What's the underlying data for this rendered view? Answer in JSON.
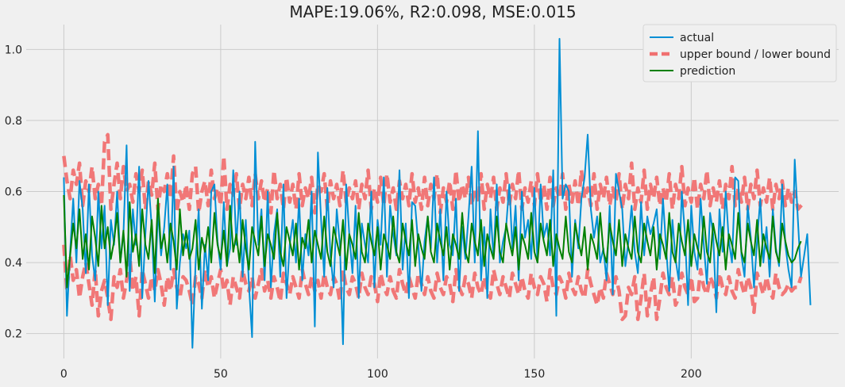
{
  "chart_data": {
    "type": "line",
    "title": "MAPE:19.06%, R2:0.098, MSE:0.015",
    "xlabel": "",
    "ylabel": "",
    "xlim": [
      -12,
      247
    ],
    "ylim": [
      0.13,
      1.07
    ],
    "xticks": [
      0,
      50,
      100,
      150,
      200
    ],
    "yticks": [
      0.2,
      0.4,
      0.6,
      0.8,
      1.0
    ],
    "xtick_labels": [
      "0",
      "50",
      "100",
      "150",
      "200"
    ],
    "ytick_labels": [
      "0.2",
      "0.4",
      "0.6",
      "0.8",
      "1.0"
    ],
    "grid": true,
    "legend_position": "top-right",
    "legend": [
      "actual",
      "upper bound / lower bound",
      "prediction"
    ],
    "colors": {
      "actual": "#008fd5",
      "bounds": "#f07070",
      "prediction": "#008000",
      "grid": "#cbcbcb",
      "background": "#f0f0f0"
    },
    "series": [
      {
        "name": "actual",
        "x_start": 0,
        "values": [
          0.64,
          0.25,
          0.43,
          0.58,
          0.4,
          0.63,
          0.55,
          0.37,
          0.62,
          0.42,
          0.35,
          0.6,
          0.44,
          0.56,
          0.28,
          0.52,
          0.45,
          0.6,
          0.4,
          0.48,
          0.73,
          0.32,
          0.55,
          0.45,
          0.67,
          0.3,
          0.48,
          0.63,
          0.5,
          0.29,
          0.55,
          0.42,
          0.5,
          0.62,
          0.38,
          0.67,
          0.27,
          0.4,
          0.48,
          0.44,
          0.49,
          0.16,
          0.4,
          0.55,
          0.27,
          0.45,
          0.35,
          0.6,
          0.62,
          0.46,
          0.38,
          0.57,
          0.39,
          0.44,
          0.66,
          0.45,
          0.6,
          0.36,
          0.52,
          0.34,
          0.19,
          0.74,
          0.45,
          0.55,
          0.35,
          0.6,
          0.33,
          0.48,
          0.55,
          0.36,
          0.62,
          0.3,
          0.45,
          0.52,
          0.4,
          0.58,
          0.35,
          0.48,
          0.42,
          0.6,
          0.22,
          0.71,
          0.52,
          0.36,
          0.61,
          0.42,
          0.33,
          0.55,
          0.45,
          0.17,
          0.62,
          0.48,
          0.37,
          0.56,
          0.3,
          0.51,
          0.45,
          0.4,
          0.6,
          0.33,
          0.52,
          0.45,
          0.64,
          0.36,
          0.56,
          0.48,
          0.42,
          0.66,
          0.38,
          0.51,
          0.3,
          0.57,
          0.56,
          0.45,
          0.32,
          0.46,
          0.53,
          0.44,
          0.64,
          0.4,
          0.55,
          0.35,
          0.6,
          0.45,
          0.42,
          0.58,
          0.32,
          0.5,
          0.41,
          0.53,
          0.67,
          0.4,
          0.77,
          0.35,
          0.5,
          0.3,
          0.55,
          0.41,
          0.62,
          0.4,
          0.46,
          0.5,
          0.62,
          0.44,
          0.56,
          0.35,
          0.6,
          0.47,
          0.52,
          0.41,
          0.61,
          0.4,
          0.62,
          0.47,
          0.51,
          0.42,
          0.66,
          0.25,
          1.03,
          0.58,
          0.62,
          0.6,
          0.36,
          0.52,
          0.44,
          0.58,
          0.64,
          0.76,
          0.55,
          0.47,
          0.53,
          0.4,
          0.44,
          0.35,
          0.56,
          0.31,
          0.65,
          0.6,
          0.55,
          0.39,
          0.46,
          0.56,
          0.43,
          0.37,
          0.57,
          0.42,
          0.53,
          0.48,
          0.51,
          0.55,
          0.41,
          0.58,
          0.44,
          0.32,
          0.52,
          0.41,
          0.35,
          0.6,
          0.48,
          0.28,
          0.56,
          0.43,
          0.38,
          0.58,
          0.45,
          0.34,
          0.54,
          0.48,
          0.26,
          0.55,
          0.43,
          0.6,
          0.46,
          0.4,
          0.64,
          0.63,
          0.42,
          0.36,
          0.56,
          0.47,
          0.33,
          0.46,
          0.58,
          0.4,
          0.5,
          0.36,
          0.55,
          0.44,
          0.39,
          0.62,
          0.45,
          0.38,
          0.33,
          0.69,
          0.52,
          0.36,
          0.42,
          0.48,
          0.28
        ]
      },
      {
        "name": "upper bound",
        "x_start": 0,
        "values": [
          0.7,
          0.63,
          0.58,
          0.66,
          0.62,
          0.68,
          0.56,
          0.63,
          0.6,
          0.67,
          0.58,
          0.62,
          0.56,
          0.74,
          0.76,
          0.55,
          0.62,
          0.68,
          0.58,
          0.67,
          0.6,
          0.62,
          0.57,
          0.65,
          0.6,
          0.66,
          0.55,
          0.63,
          0.59,
          0.68,
          0.55,
          0.62,
          0.6,
          0.65,
          0.58,
          0.7,
          0.54,
          0.6,
          0.57,
          0.62,
          0.55,
          0.65,
          0.67,
          0.54,
          0.6,
          0.63,
          0.56,
          0.66,
          0.58,
          0.61,
          0.56,
          0.7,
          0.55,
          0.62,
          0.59,
          0.65,
          0.55,
          0.62,
          0.58,
          0.64,
          0.56,
          0.65,
          0.58,
          0.63,
          0.57,
          0.61,
          0.54,
          0.66,
          0.58,
          0.62,
          0.55,
          0.64,
          0.57,
          0.62,
          0.55,
          0.65,
          0.56,
          0.61,
          0.58,
          0.64,
          0.54,
          0.62,
          0.6,
          0.65,
          0.55,
          0.63,
          0.58,
          0.62,
          0.56,
          0.66,
          0.57,
          0.61,
          0.58,
          0.63,
          0.55,
          0.62,
          0.58,
          0.66,
          0.55,
          0.61,
          0.57,
          0.64,
          0.56,
          0.65,
          0.57,
          0.61,
          0.55,
          0.63,
          0.58,
          0.62,
          0.56,
          0.65,
          0.57,
          0.61,
          0.55,
          0.64,
          0.56,
          0.62,
          0.58,
          0.65,
          0.54,
          0.61,
          0.57,
          0.63,
          0.55,
          0.66,
          0.57,
          0.62,
          0.58,
          0.64,
          0.56,
          0.61,
          0.57,
          0.65,
          0.55,
          0.62,
          0.58,
          0.64,
          0.55,
          0.61,
          0.57,
          0.65,
          0.56,
          0.62,
          0.58,
          0.66,
          0.55,
          0.61,
          0.57,
          0.63,
          0.56,
          0.65,
          0.57,
          0.62,
          0.55,
          0.64,
          0.56,
          0.61,
          0.58,
          0.65,
          0.55,
          0.62,
          0.57,
          0.63,
          0.56,
          0.66,
          0.58,
          0.61,
          0.56,
          0.65,
          0.55,
          0.62,
          0.58,
          0.64,
          0.56,
          0.61,
          0.57,
          0.65,
          0.55,
          0.62,
          0.58,
          0.68,
          0.55,
          0.61,
          0.57,
          0.66,
          0.55,
          0.62,
          0.58,
          0.64,
          0.56,
          0.61,
          0.57,
          0.65,
          0.55,
          0.62,
          0.58,
          0.67,
          0.56,
          0.61,
          0.57,
          0.64,
          0.55,
          0.62,
          0.58,
          0.66,
          0.56,
          0.61,
          0.57,
          0.63,
          0.55,
          0.62,
          0.58,
          0.67,
          0.56,
          0.61,
          0.57,
          0.64,
          0.55,
          0.62,
          0.58,
          0.66,
          0.56,
          0.61,
          0.57,
          0.64,
          0.55,
          0.62,
          0.58,
          0.63,
          0.56,
          0.61,
          0.57,
          0.6,
          0.55,
          0.56,
          0.57
        ]
      },
      {
        "name": "lower bound",
        "x_start": 0,
        "values": [
          0.45,
          0.32,
          0.42,
          0.35,
          0.38,
          0.3,
          0.36,
          0.4,
          0.34,
          0.28,
          0.38,
          0.25,
          0.32,
          0.35,
          0.3,
          0.24,
          0.36,
          0.33,
          0.38,
          0.3,
          0.35,
          0.42,
          0.32,
          0.36,
          0.25,
          0.38,
          0.34,
          0.3,
          0.36,
          0.32,
          0.38,
          0.34,
          0.28,
          0.36,
          0.32,
          0.38,
          0.33,
          0.3,
          0.36,
          0.35,
          0.32,
          0.28,
          0.36,
          0.34,
          0.3,
          0.38,
          0.33,
          0.36,
          0.3,
          0.34,
          0.38,
          0.32,
          0.35,
          0.28,
          0.36,
          0.33,
          0.3,
          0.38,
          0.34,
          0.32,
          0.36,
          0.3,
          0.34,
          0.38,
          0.32,
          0.35,
          0.3,
          0.36,
          0.33,
          0.29,
          0.37,
          0.34,
          0.31,
          0.36,
          0.33,
          0.3,
          0.38,
          0.34,
          0.31,
          0.36,
          0.32,
          0.35,
          0.3,
          0.37,
          0.33,
          0.31,
          0.36,
          0.34,
          0.29,
          0.38,
          0.33,
          0.31,
          0.36,
          0.34,
          0.3,
          0.37,
          0.33,
          0.31,
          0.36,
          0.34,
          0.29,
          0.37,
          0.33,
          0.31,
          0.36,
          0.32,
          0.3,
          0.38,
          0.34,
          0.31,
          0.36,
          0.33,
          0.3,
          0.37,
          0.34,
          0.31,
          0.36,
          0.32,
          0.3,
          0.37,
          0.33,
          0.31,
          0.36,
          0.34,
          0.29,
          0.38,
          0.33,
          0.31,
          0.36,
          0.34,
          0.3,
          0.37,
          0.33,
          0.31,
          0.36,
          0.32,
          0.3,
          0.38,
          0.34,
          0.31,
          0.36,
          0.33,
          0.3,
          0.37,
          0.34,
          0.31,
          0.36,
          0.32,
          0.3,
          0.37,
          0.33,
          0.31,
          0.36,
          0.34,
          0.29,
          0.38,
          0.33,
          0.31,
          0.36,
          0.34,
          0.3,
          0.37,
          0.33,
          0.31,
          0.36,
          0.32,
          0.3,
          0.38,
          0.34,
          0.31,
          0.28,
          0.33,
          0.3,
          0.37,
          0.34,
          0.31,
          0.36,
          0.32,
          0.24,
          0.25,
          0.33,
          0.31,
          0.36,
          0.24,
          0.3,
          0.37,
          0.25,
          0.31,
          0.36,
          0.24,
          0.3,
          0.37,
          0.33,
          0.31,
          0.36,
          0.28,
          0.3,
          0.37,
          0.33,
          0.31,
          0.36,
          0.29,
          0.3,
          0.38,
          0.33,
          0.31,
          0.36,
          0.34,
          0.3,
          0.37,
          0.33,
          0.31,
          0.36,
          0.32,
          0.3,
          0.38,
          0.34,
          0.31,
          0.36,
          0.33,
          0.26,
          0.37,
          0.34,
          0.31,
          0.36,
          0.32,
          0.3,
          0.37,
          0.33,
          0.31,
          0.32,
          0.34,
          0.32,
          0.33,
          0.33,
          0.36
        ]
      },
      {
        "name": "prediction",
        "x_start": 0,
        "values": [
          0.59,
          0.33,
          0.42,
          0.51,
          0.44,
          0.55,
          0.41,
          0.48,
          0.38,
          0.53,
          0.47,
          0.39,
          0.56,
          0.44,
          0.5,
          0.41,
          0.46,
          0.54,
          0.4,
          0.49,
          0.36,
          0.57,
          0.43,
          0.48,
          0.39,
          0.55,
          0.45,
          0.41,
          0.52,
          0.37,
          0.58,
          0.44,
          0.48,
          0.4,
          0.51,
          0.46,
          0.38,
          0.55,
          0.42,
          0.49,
          0.41,
          0.44,
          0.52,
          0.38,
          0.47,
          0.43,
          0.5,
          0.4,
          0.54,
          0.45,
          0.41,
          0.49,
          0.39,
          0.56,
          0.43,
          0.48,
          0.4,
          0.52,
          0.44,
          0.38,
          0.5,
          0.46,
          0.42,
          0.53,
          0.39,
          0.48,
          0.45,
          0.41,
          0.54,
          0.43,
          0.39,
          0.5,
          0.46,
          0.42,
          0.51,
          0.38,
          0.47,
          0.44,
          0.52,
          0.4,
          0.49,
          0.45,
          0.41,
          0.53,
          0.43,
          0.39,
          0.5,
          0.46,
          0.42,
          0.52,
          0.38,
          0.48,
          0.45,
          0.41,
          0.54,
          0.43,
          0.4,
          0.51,
          0.46,
          0.42,
          0.5,
          0.38,
          0.48,
          0.45,
          0.41,
          0.53,
          0.43,
          0.4,
          0.51,
          0.46,
          0.42,
          0.52,
          0.39,
          0.48,
          0.44,
          0.41,
          0.53,
          0.43,
          0.4,
          0.51,
          0.46,
          0.42,
          0.5,
          0.38,
          0.48,
          0.45,
          0.41,
          0.54,
          0.43,
          0.4,
          0.51,
          0.46,
          0.42,
          0.52,
          0.39,
          0.48,
          0.44,
          0.41,
          0.53,
          0.43,
          0.4,
          0.51,
          0.46,
          0.42,
          0.5,
          0.38,
          0.48,
          0.45,
          0.41,
          0.54,
          0.43,
          0.4,
          0.51,
          0.46,
          0.42,
          0.52,
          0.39,
          0.48,
          0.44,
          0.41,
          0.53,
          0.43,
          0.4,
          0.51,
          0.46,
          0.42,
          0.5,
          0.38,
          0.48,
          0.45,
          0.41,
          0.54,
          0.43,
          0.4,
          0.51,
          0.46,
          0.42,
          0.52,
          0.39,
          0.48,
          0.44,
          0.41,
          0.53,
          0.43,
          0.4,
          0.51,
          0.46,
          0.42,
          0.5,
          0.38,
          0.48,
          0.45,
          0.41,
          0.54,
          0.43,
          0.4,
          0.51,
          0.46,
          0.42,
          0.52,
          0.39,
          0.48,
          0.44,
          0.41,
          0.53,
          0.43,
          0.4,
          0.51,
          0.46,
          0.42,
          0.5,
          0.38,
          0.48,
          0.45,
          0.41,
          0.54,
          0.43,
          0.4,
          0.51,
          0.46,
          0.42,
          0.52,
          0.39,
          0.48,
          0.44,
          0.41,
          0.53,
          0.43,
          0.4,
          0.51,
          0.46,
          0.42,
          0.4,
          0.41,
          0.44,
          0.46
        ]
      }
    ]
  }
}
